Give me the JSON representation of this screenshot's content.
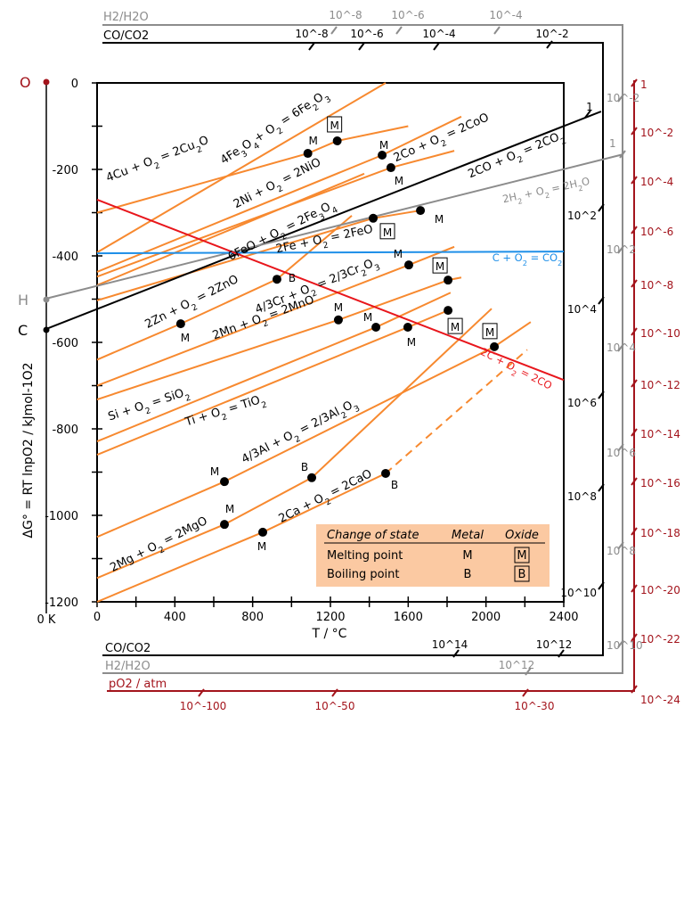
{
  "chart_data": {
    "type": "line",
    "xlabel": "T / °C",
    "ylabel": "ΔG° = RT lnpO2 / kJmol-1O2",
    "xlim": [
      0,
      2400
    ],
    "ylim": [
      -1200,
      0
    ],
    "x_ticks": [
      "0",
      "400",
      "800",
      "1200",
      "1600",
      "2000",
      "2400"
    ],
    "y_ticks": [
      "0",
      "-200",
      "-400",
      "-600",
      "-800",
      "-1000",
      "-1200"
    ],
    "zero_kelvin_label": "0 K",
    "grid": false,
    "colors": {
      "metal_oxide": "#f7892f",
      "co": "#e8161c",
      "co2": "#1e8fe8",
      "co_co2": "#000000",
      "h2_h2o": "#8c8c8c",
      "po2": "#a3141c",
      "legend_bg": "#fbc9a2"
    },
    "series": [
      {
        "name": "4Cu + O2 = 2Cu2O",
        "color": "metal_oxide",
        "points": [
          [
            0,
            -300
          ],
          [
            1084,
            -163
          ],
          [
            1235,
            -134
          ],
          [
            1600,
            -100
          ]
        ],
        "markers": [
          {
            "at": 1,
            "label": "M",
            "kind": "metal"
          },
          {
            "at": 2,
            "label": "M",
            "kind": "oxide"
          }
        ]
      },
      {
        "name": "4Fe3O4+ O2 = 6Fe2O3",
        "color": "metal_oxide",
        "points": [
          [
            0,
            -392
          ],
          [
            1484,
            0
          ]
        ],
        "markers": []
      },
      {
        "name": "2Ni + O2 = 2NiO",
        "color": "metal_oxide",
        "points": [
          [
            0,
            -437
          ],
          [
            1466,
            -167
          ],
          [
            1873,
            -78
          ]
        ],
        "markers": [
          {
            "at": 1,
            "label": "M",
            "kind": "metal"
          }
        ]
      },
      {
        "name": "2Co + O2 = 2CoO",
        "color": "metal_oxide",
        "points": [
          [
            0,
            -448
          ],
          [
            1511,
            -196
          ],
          [
            1837,
            -157
          ]
        ],
        "markers": [
          {
            "at": 1,
            "label": "M",
            "kind": "metal"
          }
        ]
      },
      {
        "name": "6FeO + O2 = 2Fe3O4",
        "color": "metal_oxide",
        "points": [
          [
            0,
            -468
          ],
          [
            1374,
            -210
          ]
        ],
        "markers": []
      },
      {
        "name": "2Fe + O2 = 2FeO",
        "color": "metal_oxide",
        "points": [
          [
            0,
            -503
          ],
          [
            1420,
            -313
          ],
          [
            1663,
            -295
          ]
        ],
        "markers": [
          {
            "at": 1,
            "label": "M",
            "kind": "oxide"
          },
          {
            "at": 2,
            "label": "M",
            "kind": "metal"
          }
        ]
      },
      {
        "name": "2Zn + O2 = 2ZnO",
        "color": "metal_oxide",
        "points": [
          [
            0,
            -640
          ],
          [
            430,
            -557
          ],
          [
            925,
            -454
          ],
          [
            1310,
            -307
          ]
        ],
        "markers": [
          {
            "at": 1,
            "label": "M",
            "kind": "metal"
          },
          {
            "at": 2,
            "label": "B",
            "kind": "metal"
          }
        ]
      },
      {
        "name": "4/3Cr + O2 = 2/3Cr2O3",
        "color": "metal_oxide",
        "points": [
          [
            0,
            -700
          ],
          [
            1603,
            -421
          ],
          [
            1837,
            -379
          ]
        ],
        "markers": [
          {
            "at": 1,
            "label": "M",
            "kind": "metal"
          }
        ]
      },
      {
        "name": "2Mn + O2 = 2MnO",
        "color": "metal_oxide",
        "points": [
          [
            0,
            -732
          ],
          [
            1241,
            -548
          ],
          [
            1805,
            -456
          ],
          [
            1873,
            -450
          ]
        ],
        "markers": [
          {
            "at": 1,
            "label": "M",
            "kind": "metal"
          },
          {
            "at": 2,
            "label": "M",
            "kind": "oxide"
          }
        ]
      },
      {
        "name": "Si + O2 = SiO2",
        "color": "metal_oxide",
        "points": [
          [
            0,
            -829
          ],
          [
            1434,
            -565
          ],
          [
            1818,
            -485
          ]
        ],
        "markers": [
          {
            "at": 1,
            "label": "M",
            "kind": "metal"
          }
        ]
      },
      {
        "name": "Ti + O2 = TiO2",
        "color": "metal_oxide",
        "points": [
          [
            0,
            -860
          ],
          [
            1598,
            -565
          ],
          [
            1805,
            -526
          ]
        ],
        "markers": [
          {
            "at": 1,
            "label": "M",
            "kind": "metal"
          },
          {
            "at": 2,
            "label": "M",
            "kind": "oxide"
          }
        ]
      },
      {
        "name": "4/3Al + O2 = 2/3Al2O3",
        "color": "metal_oxide",
        "points": [
          [
            0,
            -1050
          ],
          [
            655,
            -922
          ],
          [
            2043,
            -610
          ],
          [
            2230,
            -553
          ]
        ],
        "markers": [
          {
            "at": 1,
            "label": "M",
            "kind": "metal"
          },
          {
            "at": 2,
            "label": "M",
            "kind": "oxide"
          }
        ]
      },
      {
        "name": "2Mg + O2 = 2MgO",
        "color": "metal_oxide",
        "points": [
          [
            0,
            -1145
          ],
          [
            655,
            -1021
          ],
          [
            1104,
            -913
          ],
          [
            2029,
            -522
          ]
        ],
        "markers": [
          {
            "at": 1,
            "label": "M",
            "kind": "metal"
          },
          {
            "at": 2,
            "label": "B",
            "kind": "metal"
          }
        ]
      },
      {
        "name": "2Ca + O2 = 2CaO",
        "color": "metal_oxide",
        "points": [
          [
            0,
            -1200
          ],
          [
            852,
            -1039
          ],
          [
            1484,
            -903
          ]
        ],
        "dashed_extension": [
          [
            1484,
            -903
          ],
          [
            2212,
            -617
          ]
        ],
        "markers": [
          {
            "at": 1,
            "label": "M",
            "kind": "metal"
          },
          {
            "at": 2,
            "label": "B",
            "kind": "metal"
          }
        ]
      },
      {
        "name": "2CO + O2 = 2CO2",
        "color": "co_co2",
        "points": [
          [
            -273,
            -571
          ],
          [
            2592,
            -66
          ]
        ],
        "markers": []
      },
      {
        "name": "2H2 + O2 = 2H2O",
        "color": "h2_h2o",
        "points": [
          [
            -273,
            -500
          ],
          [
            2707,
            -165
          ]
        ],
        "markers": []
      },
      {
        "name": "C + O2 = CO2",
        "color": "co2",
        "points": [
          [
            0,
            -394
          ],
          [
            2400,
            -390
          ]
        ],
        "markers": []
      },
      {
        "name": "2C + O2 = 2CO",
        "color": "co",
        "points": [
          [
            0,
            -270
          ],
          [
            2400,
            -687
          ]
        ],
        "markers": []
      }
    ],
    "pivot_points": {
      "O": "O",
      "H": "H",
      "C": "C"
    },
    "nomograph": {
      "co_co2_label": "CO/CO2",
      "h2_h2o_label": "H2/H2O",
      "po2_label": "pO2 / atm",
      "co_co2_top": [
        "10^-8",
        "10^-6",
        "10^-4",
        "10^-2"
      ],
      "co_co2_right": [
        "1",
        "10^2",
        "10^4",
        "10^6",
        "10^8",
        "10^10"
      ],
      "co_co2_bottom": [
        "10^14",
        "10^12"
      ],
      "h2_h2o_top": [
        "10^-8",
        "10^-6",
        "10^-4"
      ],
      "h2_h2o_right": [
        "10^-2",
        "1",
        "10^2",
        "10^4",
        "10^6",
        "10^8",
        "10^10"
      ],
      "h2_h2o_bottom": [
        "10^12"
      ],
      "po2_right": [
        "1",
        "10^-2",
        "10^-4",
        "10^-6",
        "10^-8",
        "10^-10",
        "10^-12",
        "10^-14",
        "10^-16",
        "10^-18",
        "10^-20",
        "10^-22",
        "10^-24"
      ],
      "po2_bottom": [
        "10^-100",
        "10^-50",
        "10^-30"
      ]
    },
    "legend": {
      "headers": [
        "Change of state",
        "Metal",
        "Oxide"
      ],
      "rows": [
        {
          "label": "Melting point",
          "metal": "M",
          "oxide": "M"
        },
        {
          "label": "Boiling point",
          "metal": "B",
          "oxide": "B"
        }
      ]
    }
  }
}
